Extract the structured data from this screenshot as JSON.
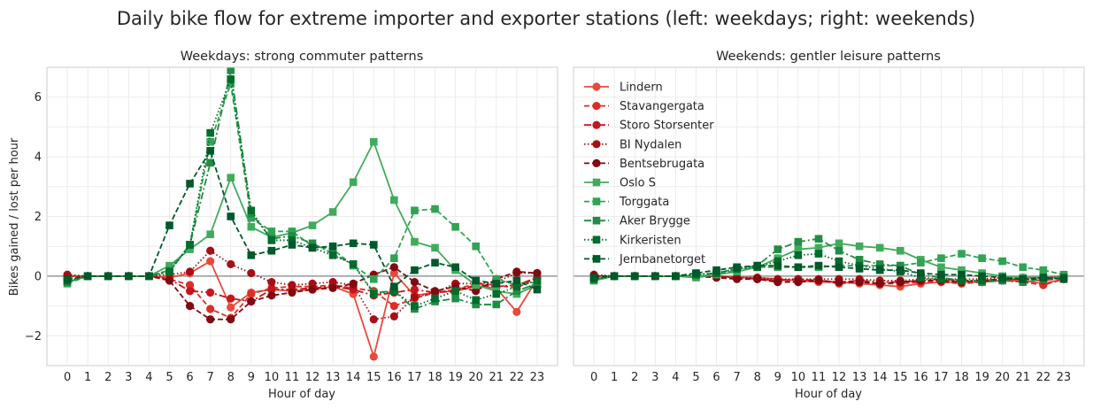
{
  "figure": {
    "title": "Daily bike flow for extreme importer and exporter stations (left: weekdays; right: weekends)"
  },
  "chart_data": [
    {
      "type": "line",
      "title": "Weekdays: strong commuter patterns",
      "xlabel": "Hour of day",
      "ylabel": "Bikes gained / lost per hour",
      "x": [
        0,
        1,
        2,
        3,
        4,
        5,
        6,
        7,
        8,
        9,
        10,
        11,
        12,
        13,
        14,
        15,
        16,
        17,
        18,
        19,
        20,
        21,
        22,
        23
      ],
      "xticks": [
        0,
        1,
        2,
        3,
        4,
        5,
        6,
        7,
        8,
        9,
        10,
        11,
        12,
        13,
        14,
        15,
        16,
        17,
        18,
        19,
        20,
        21,
        22,
        23
      ],
      "yticks": [
        -2,
        0,
        2,
        4,
        6
      ],
      "xlim": [
        -1,
        24
      ],
      "ylim": [
        -3,
        7
      ],
      "grid": true,
      "zero_line": true,
      "series": [
        {
          "name": "Lindern",
          "color": "#e8493a",
          "dash": "solid",
          "marker": "circle",
          "values": [
            0,
            0,
            0,
            0,
            0,
            -0.05,
            0.1,
            0.5,
            -1.05,
            -0.55,
            -0.45,
            -0.5,
            -0.45,
            -0.35,
            -0.6,
            -2.7,
            0.1,
            -0.65,
            -0.55,
            -0.5,
            -0.35,
            -0.4,
            -1.2,
            -0.1
          ]
        },
        {
          "name": "Stavangergata",
          "color": "#de2d26",
          "dash": "dashed",
          "marker": "circle",
          "values": [
            0,
            0,
            0,
            0,
            0,
            -0.1,
            -0.3,
            -1.1,
            -1.4,
            -0.6,
            -0.4,
            -0.35,
            -0.35,
            -0.3,
            -0.4,
            -0.5,
            -1.0,
            -0.75,
            -0.55,
            -0.45,
            -0.25,
            -0.3,
            -0.4,
            -0.05
          ]
        },
        {
          "name": "Storo Storsenter",
          "color": "#c4161c",
          "dash": "dashdot",
          "marker": "circle",
          "values": [
            0,
            0,
            0,
            0,
            0,
            -0.1,
            -0.5,
            -0.55,
            -0.75,
            -0.85,
            -0.45,
            -0.45,
            -0.4,
            -0.35,
            -0.45,
            -0.65,
            -0.55,
            -0.45,
            -0.55,
            -0.5,
            -0.3,
            -0.35,
            -0.3,
            -0.05
          ]
        },
        {
          "name": "BI Nydalen",
          "color": "#a50f15",
          "dash": "dotted",
          "marker": "circle",
          "values": [
            0.05,
            0,
            0,
            0,
            0,
            0.05,
            0.15,
            0.85,
            0.4,
            0.1,
            -0.2,
            -0.3,
            -0.25,
            -0.2,
            -0.3,
            -1.45,
            -1.35,
            -0.7,
            -0.55,
            -0.25,
            -0.25,
            -0.2,
            0.1,
            0.1
          ]
        },
        {
          "name": "Bentsebrugata",
          "color": "#800a10",
          "dash": "dashed",
          "marker": "circle",
          "values": [
            -0.1,
            0,
            0,
            0,
            0,
            -0.15,
            -1.0,
            -1.45,
            -1.45,
            -0.85,
            -0.65,
            -0.55,
            -0.45,
            -0.4,
            -0.25,
            0.05,
            0.3,
            -0.2,
            -0.5,
            -0.35,
            -0.5,
            -0.1,
            0.15,
            0.1
          ]
        },
        {
          "name": "Oslo S",
          "color": "#41ab5d",
          "dash": "solid",
          "marker": "square",
          "values": [
            -0.2,
            0,
            0,
            0,
            0,
            0.35,
            0.9,
            1.4,
            3.3,
            1.65,
            1.3,
            1.45,
            1.7,
            2.15,
            3.15,
            4.5,
            2.55,
            1.15,
            0.95,
            0.2,
            -0.3,
            -0.5,
            -0.6,
            -0.3
          ]
        },
        {
          "name": "Torggata",
          "color": "#31a354",
          "dash": "dashed",
          "marker": "square",
          "values": [
            -0.25,
            0,
            0,
            0,
            0,
            0.2,
            1.05,
            4.5,
            6.45,
            1.95,
            1.5,
            1.5,
            1.0,
            0.9,
            0.35,
            -0.1,
            0.6,
            2.2,
            2.25,
            1.65,
            1.0,
            -0.1,
            -0.3,
            -0.2
          ]
        },
        {
          "name": "Aker Brygge",
          "color": "#238b45",
          "dash": "dashdot",
          "marker": "square",
          "values": [
            -0.2,
            0,
            0,
            0,
            0,
            0.15,
            1.05,
            3.8,
            6.9,
            2.1,
            1.25,
            1.35,
            1.1,
            0.75,
            0.4,
            -0.55,
            -0.5,
            -1.1,
            -0.85,
            -0.75,
            -0.95,
            -0.95,
            -0.5,
            -0.25
          ]
        },
        {
          "name": "Kirkeristen",
          "color": "#006d2c",
          "dash": "dotted",
          "marker": "square",
          "values": [
            -0.15,
            0,
            0,
            0,
            0,
            0.15,
            1.05,
            4.8,
            6.6,
            2.2,
            1.2,
            1.2,
            0.95,
            0.7,
            0.4,
            -0.6,
            -0.5,
            -1.0,
            -0.75,
            -0.5,
            -0.8,
            -0.6,
            -0.35,
            -0.15
          ]
        },
        {
          "name": "Jernbanetorget",
          "color": "#00592a",
          "dash": "dashed",
          "marker": "square",
          "values": [
            -0.1,
            0,
            0,
            0,
            0,
            1.7,
            3.1,
            4.2,
            2.0,
            0.7,
            0.85,
            1.05,
            0.95,
            1.0,
            1.1,
            1.05,
            -0.35,
            0.2,
            0.45,
            0.3,
            -0.15,
            -0.25,
            -0.15,
            -0.45
          ]
        }
      ]
    },
    {
      "type": "line",
      "title": "Weekends: gentler leisure patterns",
      "xlabel": "Hour of day",
      "ylabel": "",
      "x": [
        0,
        1,
        2,
        3,
        4,
        5,
        6,
        7,
        8,
        9,
        10,
        11,
        12,
        13,
        14,
        15,
        16,
        17,
        18,
        19,
        20,
        21,
        22,
        23
      ],
      "xticks": [
        0,
        1,
        2,
        3,
        4,
        5,
        6,
        7,
        8,
        9,
        10,
        11,
        12,
        13,
        14,
        15,
        16,
        17,
        18,
        19,
        20,
        21,
        22,
        23
      ],
      "xlim": [
        -1,
        24
      ],
      "ylim": [
        -3,
        7
      ],
      "grid": true,
      "zero_line": true,
      "legend": "top-left",
      "series": [
        {
          "name": "Lindern",
          "color": "#e8493a",
          "dash": "solid",
          "marker": "circle",
          "values": [
            0,
            0,
            0,
            0,
            0,
            0,
            0,
            -0.05,
            -0.05,
            -0.1,
            -0.15,
            -0.2,
            -0.2,
            -0.25,
            -0.3,
            -0.35,
            -0.25,
            -0.2,
            -0.2,
            -0.2,
            -0.15,
            -0.15,
            -0.25,
            -0.1
          ]
        },
        {
          "name": "Stavangergata",
          "color": "#de2d26",
          "dash": "dashed",
          "marker": "circle",
          "values": [
            0,
            0,
            0,
            0,
            0,
            0,
            -0.05,
            -0.05,
            -0.1,
            -0.15,
            -0.15,
            -0.15,
            -0.25,
            -0.2,
            -0.25,
            -0.25,
            -0.2,
            -0.2,
            -0.25,
            -0.2,
            -0.15,
            -0.2,
            -0.3,
            -0.1
          ]
        },
        {
          "name": "Storo Storsenter",
          "color": "#c4161c",
          "dash": "dashdot",
          "marker": "circle",
          "values": [
            0,
            0,
            0,
            0,
            0,
            0,
            0,
            -0.05,
            -0.1,
            -0.15,
            -0.1,
            -0.15,
            -0.2,
            -0.15,
            -0.2,
            -0.2,
            -0.15,
            -0.1,
            -0.15,
            -0.15,
            -0.1,
            -0.1,
            -0.15,
            -0.05
          ]
        },
        {
          "name": "BI Nydalen",
          "color": "#a50f15",
          "dash": "dotted",
          "marker": "circle",
          "values": [
            0.05,
            0,
            0,
            0,
            0,
            0,
            0,
            -0.05,
            -0.05,
            -0.1,
            -0.1,
            -0.1,
            -0.1,
            -0.1,
            -0.15,
            -0.15,
            -0.1,
            -0.1,
            -0.1,
            -0.1,
            -0.05,
            -0.05,
            -0.05,
            0
          ]
        },
        {
          "name": "Bentsebrugata",
          "color": "#800a10",
          "dash": "dashed",
          "marker": "circle",
          "values": [
            0,
            0,
            0,
            0,
            0,
            0,
            -0.05,
            -0.1,
            -0.1,
            -0.2,
            -0.2,
            -0.15,
            -0.2,
            -0.2,
            -0.25,
            -0.2,
            -0.15,
            -0.15,
            -0.2,
            -0.15,
            -0.1,
            -0.1,
            -0.1,
            -0.05
          ]
        },
        {
          "name": "Oslo S",
          "color": "#41ab5d",
          "dash": "solid",
          "marker": "square",
          "values": [
            -0.15,
            0,
            0,
            0,
            0,
            -0.05,
            0.05,
            0.15,
            0.3,
            0.6,
            0.9,
            0.95,
            1.1,
            1.0,
            0.95,
            0.85,
            0.55,
            0.3,
            0.2,
            0.1,
            0,
            -0.05,
            -0.05,
            -0.05
          ]
        },
        {
          "name": "Torggata",
          "color": "#31a354",
          "dash": "dashed",
          "marker": "square",
          "values": [
            -0.15,
            0,
            0,
            0,
            0,
            0,
            0.05,
            0.2,
            0.3,
            0.3,
            0.3,
            0.3,
            0.35,
            0.35,
            0.35,
            0.35,
            0.45,
            0.6,
            0.75,
            0.6,
            0.5,
            0.3,
            0.2,
            0.05
          ]
        },
        {
          "name": "Aker Brygge",
          "color": "#238b45",
          "dash": "dashdot",
          "marker": "square",
          "values": [
            -0.1,
            0,
            0,
            0,
            0,
            0.05,
            0.1,
            0.25,
            0.35,
            0.9,
            1.15,
            1.25,
            0.85,
            0.55,
            0.4,
            0.35,
            0.05,
            -0.05,
            -0.15,
            -0.2,
            -0.15,
            -0.2,
            -0.1,
            -0.05
          ]
        },
        {
          "name": "Kirkeristen",
          "color": "#006d2c",
          "dash": "dotted",
          "marker": "square",
          "values": [
            -0.1,
            0,
            0,
            0,
            0,
            0.05,
            0.1,
            0.25,
            0.3,
            0.5,
            0.7,
            0.75,
            0.5,
            0.35,
            0.25,
            0.15,
            -0.05,
            -0.1,
            -0.15,
            -0.15,
            -0.1,
            -0.1,
            -0.05,
            -0.05
          ]
        },
        {
          "name": "Jernbanetorget",
          "color": "#00592a",
          "dash": "dashed",
          "marker": "square",
          "values": [
            -0.05,
            0,
            0,
            0,
            0,
            0.1,
            0.2,
            0.3,
            0.35,
            0.35,
            0.3,
            0.35,
            0.3,
            0.25,
            0.2,
            0.2,
            0.1,
            0.05,
            0.05,
            0,
            -0.05,
            -0.1,
            -0.05,
            -0.1
          ]
        }
      ]
    }
  ]
}
